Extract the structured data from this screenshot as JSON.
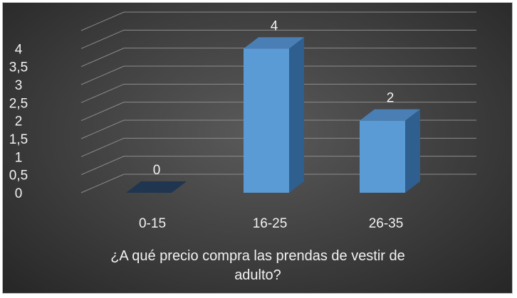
{
  "chart_data": {
    "type": "bar",
    "categories": [
      "0-15",
      "16-25",
      "26-35"
    ],
    "values": [
      0,
      4,
      2
    ],
    "data_labels": [
      "0",
      "4",
      "2"
    ],
    "y_ticks": [
      "0",
      "0,5",
      "1",
      "1,5",
      "2",
      "2,5",
      "3",
      "3,5",
      "4"
    ],
    "ylim": [
      0,
      4.5
    ],
    "grid": true,
    "legend": "none",
    "xlabel_lines": [
      "¿A qué precio compra las prendas de vestir de",
      "adulto?"
    ],
    "colors": {
      "bar_front": "#5b9bd5",
      "bar_side": "#2e5f8e",
      "bar_top": "#4a7fb5",
      "gridline": "#8c8c8c",
      "text": "#f2f2f2"
    }
  }
}
